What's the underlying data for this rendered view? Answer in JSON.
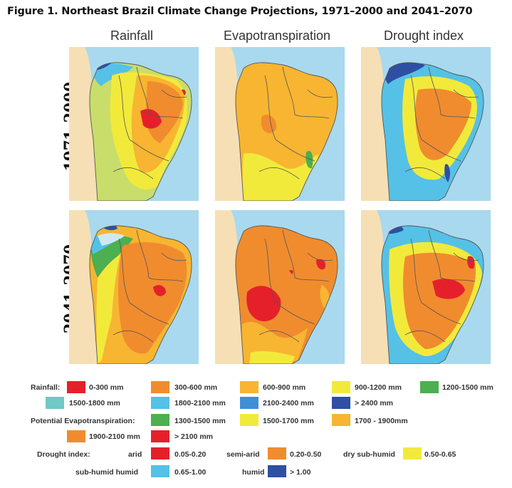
{
  "title": "Figure 1. Northeast Brazil Climate Change Projections, 1971–2000 and 2041–2070",
  "columns": [
    "Rainfall",
    "Evapotranspiration",
    "Drought index"
  ],
  "rows": [
    "1971-2000",
    "2041-2070"
  ],
  "colors": {
    "ocean": "#a9d9ee",
    "land_outside": "#f6dfb4",
    "border": "#555555",
    "red": "#e5202b",
    "orange": "#f08c2e",
    "light_orange": "#f7b531",
    "yellow": "#f2ea3a",
    "green": "#4caf50",
    "teal": "#6fc9c6",
    "light_blue": "#55c1e6",
    "mid_blue": "#3f8fd6",
    "dark_blue": "#2f4fa3",
    "pale_blue": "#cfe9f3",
    "yellow_green": "#c9dd6b"
  },
  "maps": [
    {
      "row": "1971-2000",
      "column": "Rainfall",
      "zones": [
        "dark_blue",
        "mid_blue",
        "light_blue",
        "green",
        "yellow_green",
        "yellow",
        "light_orange",
        "orange",
        "red"
      ]
    },
    {
      "row": "1971-2000",
      "column": "Evapotranspiration",
      "zones": [
        "light_orange",
        "yellow",
        "orange",
        "green"
      ]
    },
    {
      "row": "1971-2000",
      "column": "Drought index",
      "zones": [
        "dark_blue",
        "light_blue",
        "yellow",
        "orange"
      ]
    },
    {
      "row": "2041-2070",
      "column": "Rainfall",
      "zones": [
        "dark_blue",
        "pale_blue",
        "light_blue",
        "green",
        "yellow",
        "light_orange",
        "orange",
        "red"
      ]
    },
    {
      "row": "2041-2070",
      "column": "Evapotranspiration",
      "zones": [
        "orange",
        "red",
        "light_orange",
        "yellow"
      ]
    },
    {
      "row": "2041-2070",
      "column": "Drought index",
      "zones": [
        "dark_blue",
        "light_blue",
        "yellow",
        "orange",
        "red"
      ]
    }
  ],
  "legend": {
    "rainfall": {
      "heading": "Rainfall:",
      "items": [
        {
          "label": "0-300 mm",
          "color": "#e5202b"
        },
        {
          "label": "300-600 mm",
          "color": "#f08c2e"
        },
        {
          "label": "600-900 mm",
          "color": "#f7b531"
        },
        {
          "label": "900-1200 mm",
          "color": "#f2ea3a"
        },
        {
          "label": "1200-1500 mm",
          "color": "#4caf50"
        },
        {
          "label": "1500-1800 mm",
          "color": "#6fc9c6"
        },
        {
          "label": "1800-2100 mm",
          "color": "#55c1e6"
        },
        {
          "label": "2100-2400 mm",
          "color": "#3f8fd6"
        },
        {
          "label": "> 2400 mm",
          "color": "#2f4fa3"
        }
      ]
    },
    "evapotranspiration": {
      "heading": "Potential Evapotranspiration:",
      "items": [
        {
          "label": "1300-1500 mm",
          "color": "#4caf50"
        },
        {
          "label": "1500-1700 mm",
          "color": "#f2ea3a"
        },
        {
          "label": "1700 - 1900mm",
          "color": "#f7b531"
        },
        {
          "label": "1900-2100 mm",
          "color": "#f08c2e"
        },
        {
          "label": "> 2100 mm",
          "color": "#e5202b"
        }
      ]
    },
    "drought": {
      "heading": "Drought index:",
      "items": [
        {
          "class": "arid",
          "label": "0.05-0.20",
          "color": "#e5202b"
        },
        {
          "class": "semi-arid",
          "label": "0.20-0.50",
          "color": "#f08c2e"
        },
        {
          "class": "dry sub-humid",
          "label": "0.50-0.65",
          "color": "#f2ea3a"
        },
        {
          "class": "sub-humid humid",
          "label": "0.65-1.00",
          "color": "#55c1e6"
        },
        {
          "class": "humid",
          "label": "> 1.00",
          "color": "#2f4fa3"
        }
      ]
    }
  }
}
